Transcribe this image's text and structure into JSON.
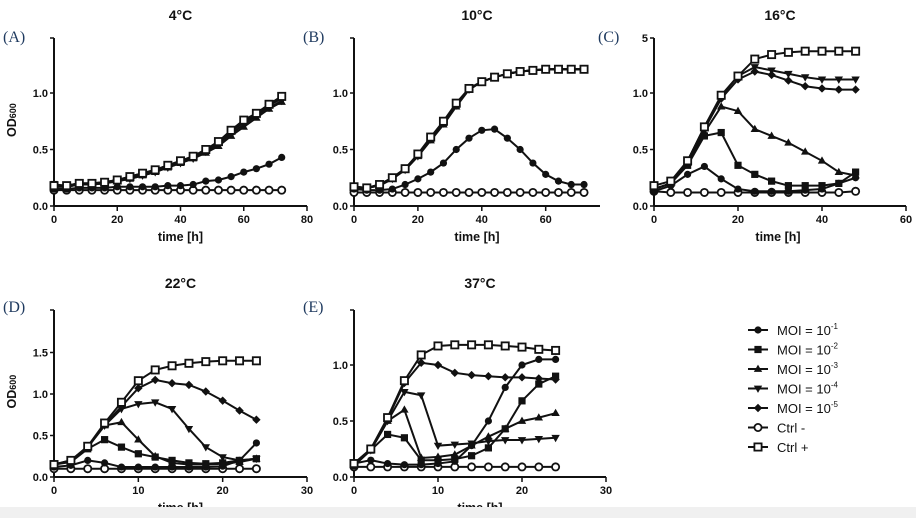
{
  "legend": {
    "placement": "right",
    "entries": [
      {
        "key": "moi1",
        "base": "MOI = 10",
        "sup": "-1",
        "marker": "circle-filled"
      },
      {
        "key": "moi2",
        "base": "MOI = 10",
        "sup": "-2",
        "marker": "square-filled"
      },
      {
        "key": "moi3",
        "base": "MOI = 10",
        "sup": "-3",
        "marker": "triangle-up-filled"
      },
      {
        "key": "moi4",
        "base": "MOI = 10",
        "sup": "-4",
        "marker": "triangle-down-filled"
      },
      {
        "key": "moi5",
        "base": "MOI = 10",
        "sup": "-5",
        "marker": "diamond-filled"
      },
      {
        "key": "ctrlneg",
        "base": "Ctrl -",
        "sup": "",
        "marker": "circle-open"
      },
      {
        "key": "ctrlpos",
        "base": "Ctrl +",
        "sup": "",
        "marker": "square-open"
      }
    ]
  },
  "colors": {
    "lines": "#111111",
    "panel_label": "#1f3a5f"
  },
  "chart_data": [
    {
      "type": "line",
      "panel": "(A)",
      "title": "4°C",
      "xlabel": "time [h]",
      "ylabel": "OD",
      "ylabel_sub": "600",
      "xlim": [
        0,
        80
      ],
      "ylim": [
        0,
        1.5
      ],
      "xticks": [
        "0",
        "20",
        "40",
        "60",
        "80"
      ],
      "yticks": [
        "0.0",
        "0.5",
        "1.0"
      ],
      "ytick_top": "",
      "x": [
        0,
        4,
        8,
        12,
        16,
        20,
        24,
        28,
        32,
        36,
        40,
        44,
        48,
        52,
        56,
        60,
        64,
        68,
        72
      ],
      "series": [
        {
          "key": "moi1",
          "values": [
            0.15,
            0.15,
            0.16,
            0.16,
            0.16,
            0.17,
            0.17,
            0.17,
            0.17,
            0.18,
            0.18,
            0.19,
            0.22,
            0.23,
            0.26,
            0.3,
            0.33,
            0.37,
            0.43
          ]
        },
        {
          "key": "moi2",
          "values": [
            0.19,
            0.18,
            0.2,
            0.2,
            0.21,
            0.23,
            0.26,
            0.29,
            0.32,
            0.36,
            0.4,
            0.44,
            0.5,
            0.57,
            0.67,
            0.76,
            0.82,
            0.9,
            0.97
          ]
        },
        {
          "key": "moi3",
          "values": [
            0.17,
            0.17,
            0.19,
            0.19,
            0.2,
            0.22,
            0.24,
            0.27,
            0.3,
            0.34,
            0.38,
            0.42,
            0.47,
            0.53,
            0.62,
            0.7,
            0.78,
            0.86,
            0.92
          ]
        },
        {
          "key": "moi4",
          "values": [
            0.17,
            0.17,
            0.19,
            0.19,
            0.2,
            0.22,
            0.24,
            0.27,
            0.3,
            0.34,
            0.38,
            0.42,
            0.48,
            0.55,
            0.64,
            0.72,
            0.8,
            0.87,
            0.93
          ]
        },
        {
          "key": "moi5",
          "values": [
            0.18,
            0.18,
            0.2,
            0.2,
            0.21,
            0.23,
            0.25,
            0.28,
            0.31,
            0.35,
            0.39,
            0.43,
            0.49,
            0.56,
            0.66,
            0.74,
            0.81,
            0.89,
            0.95
          ]
        },
        {
          "key": "ctrlneg",
          "values": [
            0.14,
            0.14,
            0.14,
            0.14,
            0.14,
            0.14,
            0.14,
            0.14,
            0.14,
            0.14,
            0.14,
            0.14,
            0.14,
            0.14,
            0.14,
            0.14,
            0.14,
            0.14,
            0.14
          ]
        },
        {
          "key": "ctrlpos",
          "values": [
            0.18,
            0.18,
            0.2,
            0.2,
            0.21,
            0.23,
            0.26,
            0.29,
            0.32,
            0.36,
            0.4,
            0.44,
            0.5,
            0.57,
            0.67,
            0.76,
            0.82,
            0.9,
            0.97
          ]
        }
      ]
    },
    {
      "type": "line",
      "panel": "(B)",
      "title": "10°C",
      "xlabel": "time [h]",
      "ylabel": "",
      "ylabel_sub": "",
      "xlim": [
        0,
        77
      ],
      "ylim": [
        0,
        1.5
      ],
      "xticks": [
        "0",
        "20",
        "40",
        "60"
      ],
      "yticks": [
        "0.0",
        "0.5",
        "1.0"
      ],
      "ytick_top": "",
      "x": [
        0,
        4,
        8,
        12,
        16,
        20,
        24,
        28,
        32,
        36,
        40,
        44,
        48,
        52,
        56,
        60,
        64,
        68,
        72
      ],
      "series": [
        {
          "key": "moi1",
          "values": [
            0.15,
            0.14,
            0.14,
            0.15,
            0.19,
            0.24,
            0.3,
            0.38,
            0.5,
            0.6,
            0.67,
            0.68,
            0.6,
            0.5,
            0.38,
            0.28,
            0.22,
            0.19,
            0.19
          ]
        },
        {
          "key": "moi2",
          "values": [
            0.17,
            0.16,
            0.19,
            0.25,
            0.33,
            0.45,
            0.6,
            0.74,
            0.9,
            1.04,
            1.1,
            1.14,
            1.17,
            1.19,
            1.2,
            1.21,
            1.21,
            1.21,
            1.21
          ]
        },
        {
          "key": "moi3",
          "values": [
            0.16,
            0.16,
            0.18,
            0.24,
            0.32,
            0.44,
            0.58,
            0.72,
            0.88,
            1.03,
            1.1,
            1.14,
            1.17,
            1.19,
            1.2,
            1.21,
            1.21,
            1.21,
            1.21
          ]
        },
        {
          "key": "moi4",
          "values": [
            0.16,
            0.16,
            0.18,
            0.24,
            0.32,
            0.44,
            0.59,
            0.73,
            0.89,
            1.03,
            1.1,
            1.14,
            1.17,
            1.19,
            1.2,
            1.21,
            1.21,
            1.21,
            1.21
          ]
        },
        {
          "key": "moi5",
          "values": [
            0.17,
            0.16,
            0.19,
            0.25,
            0.33,
            0.45,
            0.6,
            0.74,
            0.9,
            1.04,
            1.1,
            1.14,
            1.17,
            1.19,
            1.2,
            1.21,
            1.21,
            1.21,
            1.21
          ]
        },
        {
          "key": "ctrlneg",
          "values": [
            0.12,
            0.12,
            0.12,
            0.12,
            0.12,
            0.12,
            0.12,
            0.12,
            0.12,
            0.12,
            0.12,
            0.12,
            0.12,
            0.12,
            0.12,
            0.12,
            0.12,
            0.12,
            0.12
          ]
        },
        {
          "key": "ctrlpos",
          "values": [
            0.17,
            0.16,
            0.19,
            0.25,
            0.33,
            0.46,
            0.61,
            0.75,
            0.91,
            1.04,
            1.1,
            1.14,
            1.17,
            1.19,
            1.2,
            1.21,
            1.21,
            1.21,
            1.21
          ]
        }
      ]
    },
    {
      "type": "line",
      "panel": "(C)",
      "title": "16°C",
      "xlabel": "time [h]",
      "ylabel": "",
      "ylabel_sub": "",
      "xlim": [
        0,
        60
      ],
      "ylim": [
        0,
        1.5
      ],
      "xticks": [
        "0",
        "20",
        "40",
        "60"
      ],
      "yticks": [
        "0.0",
        "0.5",
        "1.0"
      ],
      "ytick_top": "5",
      "x": [
        0,
        4,
        8,
        12,
        16,
        20,
        24,
        28,
        32,
        36,
        40,
        44,
        48
      ],
      "series": [
        {
          "key": "moi1",
          "values": [
            0.13,
            0.18,
            0.28,
            0.35,
            0.24,
            0.15,
            0.13,
            0.13,
            0.13,
            0.14,
            0.15,
            0.2,
            0.25
          ]
        },
        {
          "key": "moi2",
          "values": [
            0.15,
            0.2,
            0.36,
            0.62,
            0.65,
            0.36,
            0.28,
            0.22,
            0.18,
            0.18,
            0.18,
            0.2,
            0.3
          ]
        },
        {
          "key": "moi3",
          "values": [
            0.15,
            0.2,
            0.38,
            0.65,
            0.88,
            0.84,
            0.68,
            0.62,
            0.56,
            0.48,
            0.4,
            0.3,
            0.27
          ]
        },
        {
          "key": "moi4",
          "values": [
            0.15,
            0.2,
            0.4,
            0.7,
            0.97,
            1.15,
            1.23,
            1.2,
            1.17,
            1.14,
            1.12,
            1.12,
            1.12
          ]
        },
        {
          "key": "moi5",
          "values": [
            0.15,
            0.2,
            0.39,
            0.68,
            0.95,
            1.12,
            1.19,
            1.16,
            1.11,
            1.06,
            1.04,
            1.03,
            1.03
          ]
        },
        {
          "key": "ctrlneg",
          "values": [
            0.13,
            0.12,
            0.12,
            0.12,
            0.12,
            0.12,
            0.12,
            0.12,
            0.12,
            0.12,
            0.12,
            0.12,
            0.13
          ]
        },
        {
          "key": "ctrlpos",
          "values": [
            0.18,
            0.22,
            0.4,
            0.7,
            0.98,
            1.15,
            1.3,
            1.34,
            1.36,
            1.37,
            1.37,
            1.37,
            1.37
          ]
        }
      ]
    },
    {
      "type": "line",
      "panel": "(D)",
      "title": "22°C",
      "xlabel": "time [h]",
      "ylabel": "OD",
      "ylabel_sub": "600",
      "xlim": [
        0,
        30
      ],
      "ylim": [
        0,
        2.0
      ],
      "xticks": [
        "0",
        "10",
        "20",
        "30"
      ],
      "yticks": [
        "0.0",
        "0.5",
        "1.0",
        "1.5"
      ],
      "ytick_top": "",
      "x": [
        0,
        2,
        4,
        6,
        8,
        10,
        12,
        14,
        16,
        18,
        20,
        22,
        24
      ],
      "series": [
        {
          "key": "moi1",
          "values": [
            0.12,
            0.14,
            0.2,
            0.17,
            0.12,
            0.12,
            0.12,
            0.12,
            0.12,
            0.12,
            0.13,
            0.2,
            0.41
          ]
        },
        {
          "key": "moi2",
          "values": [
            0.15,
            0.18,
            0.34,
            0.45,
            0.36,
            0.28,
            0.24,
            0.2,
            0.17,
            0.16,
            0.17,
            0.2,
            0.22
          ]
        },
        {
          "key": "moi3",
          "values": [
            0.15,
            0.2,
            0.36,
            0.62,
            0.66,
            0.45,
            0.25,
            0.17,
            0.15,
            0.15,
            0.16,
            0.18,
            0.22
          ]
        },
        {
          "key": "moi4",
          "values": [
            0.15,
            0.2,
            0.36,
            0.62,
            0.82,
            0.88,
            0.9,
            0.82,
            0.58,
            0.36,
            0.24,
            0.2,
            0.22
          ]
        },
        {
          "key": "moi5",
          "values": [
            0.15,
            0.2,
            0.36,
            0.63,
            0.85,
            1.07,
            1.17,
            1.13,
            1.11,
            1.03,
            0.92,
            0.8,
            0.69
          ]
        },
        {
          "key": "ctrlneg",
          "values": [
            0.1,
            0.1,
            0.1,
            0.1,
            0.1,
            0.1,
            0.1,
            0.1,
            0.1,
            0.1,
            0.1,
            0.1,
            0.1
          ]
        },
        {
          "key": "ctrlpos",
          "values": [
            0.15,
            0.2,
            0.37,
            0.65,
            0.9,
            1.16,
            1.29,
            1.34,
            1.37,
            1.39,
            1.4,
            1.4,
            1.4
          ]
        }
      ]
    },
    {
      "type": "line",
      "panel": "(E)",
      "title": "37°C",
      "xlabel": "time [h]",
      "ylabel": "",
      "ylabel_sub": "",
      "xlim": [
        0,
        30
      ],
      "ylim": [
        0,
        1.5
      ],
      "xticks": [
        "0",
        "10",
        "20",
        "30"
      ],
      "yticks": [
        "0.0",
        "0.5",
        "1.0"
      ],
      "ytick_top": "",
      "x": [
        0,
        2,
        4,
        6,
        8,
        10,
        12,
        14,
        16,
        18,
        20,
        22,
        24
      ],
      "series": [
        {
          "key": "moi1",
          "values": [
            0.12,
            0.15,
            0.12,
            0.11,
            0.11,
            0.12,
            0.14,
            0.28,
            0.5,
            0.8,
            1.0,
            1.05,
            1.05
          ]
        },
        {
          "key": "moi2",
          "values": [
            0.1,
            0.24,
            0.38,
            0.35,
            0.15,
            0.15,
            0.16,
            0.19,
            0.26,
            0.43,
            0.68,
            0.83,
            0.9
          ]
        },
        {
          "key": "moi3",
          "values": [
            0.12,
            0.24,
            0.5,
            0.6,
            0.17,
            0.18,
            0.2,
            0.28,
            0.36,
            0.43,
            0.5,
            0.53,
            0.57
          ]
        },
        {
          "key": "moi4",
          "values": [
            0.12,
            0.24,
            0.5,
            0.76,
            0.73,
            0.28,
            0.29,
            0.3,
            0.32,
            0.33,
            0.33,
            0.34,
            0.35
          ]
        },
        {
          "key": "moi5",
          "values": [
            0.12,
            0.25,
            0.52,
            0.84,
            1.02,
            1.0,
            0.93,
            0.91,
            0.9,
            0.89,
            0.89,
            0.88,
            0.87
          ]
        },
        {
          "key": "ctrlneg",
          "values": [
            0.09,
            0.09,
            0.09,
            0.09,
            0.09,
            0.09,
            0.09,
            0.09,
            0.09,
            0.09,
            0.09,
            0.09,
            0.09
          ]
        },
        {
          "key": "ctrlpos",
          "values": [
            0.12,
            0.25,
            0.53,
            0.86,
            1.09,
            1.17,
            1.18,
            1.18,
            1.18,
            1.17,
            1.16,
            1.14,
            1.13
          ]
        }
      ]
    }
  ]
}
